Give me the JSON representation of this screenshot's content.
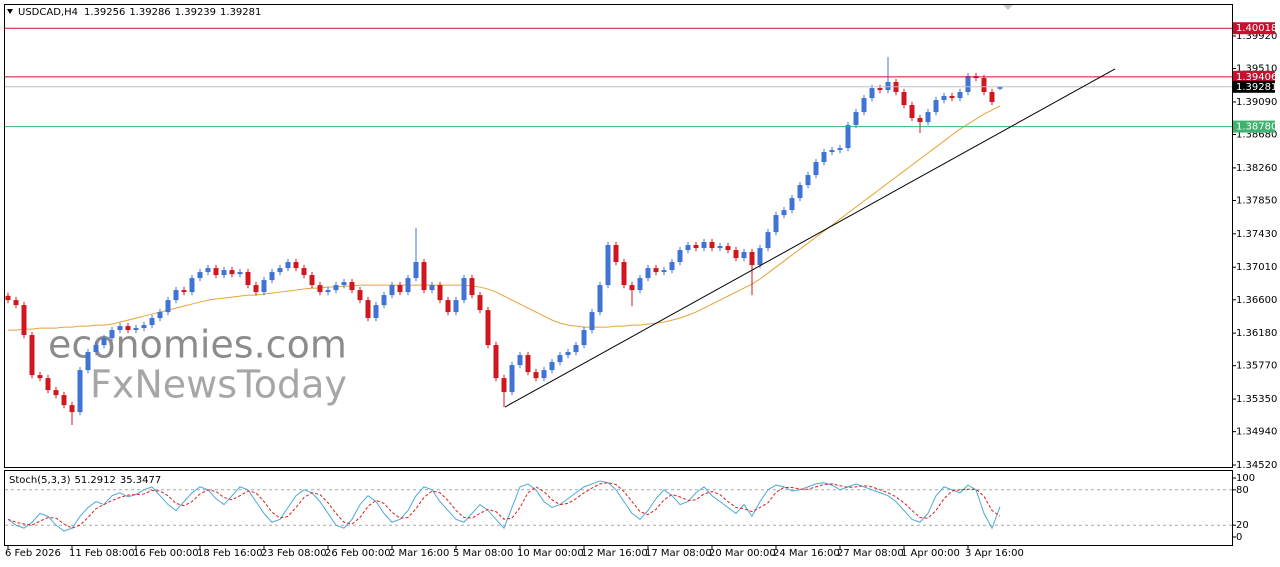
{
  "chart_data": [
    {
      "type": "candlestick",
      "title": "USDCAD,H4",
      "categories": [
        "6 Feb 2026",
        null,
        null,
        null,
        null,
        null,
        null,
        null,
        "11 Feb 08:00",
        null,
        null,
        null,
        null,
        null,
        null,
        null,
        "16 Feb 00:00",
        null,
        null,
        null,
        null,
        null,
        null,
        null,
        "18 Feb 16:00",
        null,
        null,
        null,
        null,
        null,
        null,
        null,
        "23 Feb 08:00",
        null,
        null,
        null,
        null,
        null,
        null,
        null,
        "26 Feb 00:00",
        null,
        null,
        null,
        null,
        null,
        null,
        null,
        "2 Mar 16:00",
        null,
        null,
        null,
        null,
        null,
        null,
        null,
        "5 Mar 08:00",
        null,
        null,
        null,
        null,
        null,
        null,
        null,
        "10 Mar 00:00",
        null,
        null,
        null,
        null,
        null,
        null,
        null,
        "12 Mar 16:00",
        null,
        null,
        null,
        null,
        null,
        null,
        null,
        "17 Mar 08:00",
        null,
        null,
        null,
        null,
        null,
        null,
        null,
        "20 Mar 00:00",
        null,
        null,
        null,
        null,
        null,
        null,
        null,
        "24 Mar 16:00",
        null,
        null,
        null,
        null,
        null,
        null,
        null,
        "27 Mar 08:00",
        null,
        null,
        null,
        null,
        null,
        null,
        null,
        "1 Apr 00:00",
        null,
        null,
        null,
        null,
        null,
        null,
        null,
        "3 Apr 16:00",
        null,
        null,
        null,
        null
      ],
      "open": [
        1.3665,
        1.36596,
        1.36533,
        1.36156,
        1.35652,
        1.35614,
        1.35463,
        1.354,
        1.35274,
        1.35186,
        1.35715,
        1.35942,
        1.3603,
        1.36118,
        1.36219,
        1.36269,
        1.36219,
        1.36244,
        1.36282,
        1.3637,
        1.36445,
        1.36596,
        1.36722,
        1.36697,
        1.36873,
        1.36949,
        1.36999,
        1.36911,
        1.36974,
        1.36923,
        1.36949,
        1.36785,
        1.36697,
        1.36848,
        1.36949,
        1.36999,
        1.37075,
        1.36999,
        1.36911,
        1.36785,
        1.36697,
        1.36722,
        1.36785,
        1.36823,
        1.36722,
        1.36596,
        1.3637,
        1.36533,
        1.36659,
        1.36785,
        1.36697,
        1.36873,
        1.37075,
        1.36722,
        1.36785,
        1.36596,
        1.36445,
        1.36596,
        1.36873,
        1.36659,
        1.3647,
        1.3603,
        1.35614,
        1.35438,
        1.35778,
        1.35904,
        1.3569,
        1.35614,
        1.35715,
        1.35816,
        1.35904,
        1.35942,
        1.3603,
        1.36219,
        1.36445,
        1.36785,
        1.37289,
        1.37075,
        1.36785,
        1.36722,
        1.36873,
        1.36999,
        1.36949,
        1.36974,
        1.37075,
        1.37226,
        1.37289,
        1.37251,
        1.37327,
        1.37251,
        1.37276,
        1.37226,
        1.37125,
        1.37201,
        1.37037,
        1.37251,
        1.37452,
        1.37666,
        1.37729,
        1.3788,
        1.38044,
        1.3817,
        1.38334,
        1.3846,
        1.38485,
        1.3851,
        1.388,
        1.38963,
        1.39139,
        1.39265,
        1.3924,
        1.39341,
        1.39215,
        1.39051,
        1.38888,
        1.38837,
        1.38963,
        1.39114,
        1.39165,
        1.39139,
        1.39215,
        1.39416,
        1.39391,
        1.39215,
        1.39256
      ],
      "high": [
        1.3669,
        1.36636,
        1.36573,
        1.36196,
        1.35692,
        1.35654,
        1.35503,
        1.3544,
        1.35314,
        1.35755,
        1.35982,
        1.3607,
        1.36158,
        1.36259,
        1.36309,
        1.36309,
        1.36284,
        1.36322,
        1.3641,
        1.36485,
        1.36636,
        1.36762,
        1.36762,
        1.36913,
        1.36989,
        1.37039,
        1.37039,
        1.37014,
        1.37014,
        1.36989,
        1.36989,
        1.36825,
        1.36888,
        1.36989,
        1.37039,
        1.37115,
        1.37115,
        1.37039,
        1.36951,
        1.36825,
        1.36762,
        1.36825,
        1.36863,
        1.36863,
        1.36762,
        1.36636,
        1.36573,
        1.36699,
        1.36825,
        1.36825,
        1.36913,
        1.37503,
        1.37115,
        1.36825,
        1.36825,
        1.36636,
        1.36636,
        1.36913,
        1.36913,
        1.36699,
        1.3651,
        1.3607,
        1.35654,
        1.35818,
        1.35944,
        1.35944,
        1.3573,
        1.35755,
        1.35856,
        1.35944,
        1.35982,
        1.3607,
        1.36259,
        1.36485,
        1.36825,
        1.37329,
        1.37329,
        1.37115,
        1.36825,
        1.36913,
        1.37039,
        1.37039,
        1.37014,
        1.37115,
        1.37266,
        1.37329,
        1.37329,
        1.37367,
        1.37367,
        1.37316,
        1.37316,
        1.37266,
        1.37241,
        1.37241,
        1.37291,
        1.37492,
        1.37706,
        1.37769,
        1.3792,
        1.38084,
        1.3821,
        1.38374,
        1.385,
        1.38525,
        1.3855,
        1.3884,
        1.39003,
        1.39179,
        1.39305,
        1.39305,
        1.39656,
        1.39381,
        1.39255,
        1.39091,
        1.38928,
        1.39003,
        1.39154,
        1.39205,
        1.39205,
        1.39255,
        1.39456,
        1.39456,
        1.39431,
        1.39255,
        1.39286
      ],
      "low": [
        1.36556,
        1.36493,
        1.36116,
        1.35612,
        1.35574,
        1.35423,
        1.3536,
        1.35234,
        1.35023,
        1.35146,
        1.35675,
        1.35902,
        1.3599,
        1.36078,
        1.36179,
        1.36179,
        1.36179,
        1.36204,
        1.36242,
        1.3633,
        1.36405,
        1.36556,
        1.36657,
        1.36657,
        1.36833,
        1.36909,
        1.36871,
        1.36871,
        1.36883,
        1.36883,
        1.36745,
        1.36657,
        1.36657,
        1.36808,
        1.36909,
        1.36959,
        1.36959,
        1.36871,
        1.36745,
        1.36657,
        1.36657,
        1.36682,
        1.36745,
        1.36682,
        1.36556,
        1.3633,
        1.3633,
        1.36493,
        1.36619,
        1.36657,
        1.36657,
        1.36833,
        1.36682,
        1.36682,
        1.36556,
        1.36405,
        1.36405,
        1.36556,
        1.36619,
        1.3643,
        1.3599,
        1.35574,
        1.3525,
        1.35398,
        1.35738,
        1.3565,
        1.35574,
        1.35574,
        1.35675,
        1.35776,
        1.35864,
        1.35902,
        1.3599,
        1.36179,
        1.36405,
        1.36745,
        1.37035,
        1.36745,
        1.3652,
        1.36682,
        1.36833,
        1.36909,
        1.36909,
        1.36934,
        1.37035,
        1.37186,
        1.37211,
        1.37211,
        1.37211,
        1.37211,
        1.37186,
        1.37085,
        1.37085,
        1.36659,
        1.36997,
        1.37211,
        1.37412,
        1.37626,
        1.37689,
        1.3784,
        1.38004,
        1.3813,
        1.38294,
        1.3842,
        1.38445,
        1.3847,
        1.3876,
        1.38923,
        1.39099,
        1.392,
        1.392,
        1.39175,
        1.39011,
        1.38848,
        1.387,
        1.38797,
        1.38923,
        1.39074,
        1.39099,
        1.39099,
        1.39175,
        1.39351,
        1.39175,
        1.39049,
        1.39239
      ],
      "close": [
        1.36596,
        1.36533,
        1.36156,
        1.35652,
        1.35614,
        1.35463,
        1.354,
        1.35274,
        1.35186,
        1.35715,
        1.35942,
        1.3603,
        1.36118,
        1.36219,
        1.36269,
        1.36219,
        1.36244,
        1.36282,
        1.3637,
        1.36445,
        1.36596,
        1.36722,
        1.36697,
        1.36873,
        1.36949,
        1.36999,
        1.36911,
        1.36974,
        1.36923,
        1.36949,
        1.36785,
        1.36697,
        1.36848,
        1.36949,
        1.36999,
        1.37075,
        1.36999,
        1.36911,
        1.36785,
        1.36697,
        1.36722,
        1.36785,
        1.36823,
        1.36722,
        1.36596,
        1.3637,
        1.36533,
        1.36659,
        1.36785,
        1.36697,
        1.36873,
        1.37075,
        1.36722,
        1.36785,
        1.36596,
        1.36445,
        1.36596,
        1.36873,
        1.36659,
        1.3647,
        1.3603,
        1.35614,
        1.35438,
        1.35778,
        1.35904,
        1.3569,
        1.35614,
        1.35715,
        1.35816,
        1.35904,
        1.35942,
        1.3603,
        1.36219,
        1.36445,
        1.36785,
        1.37289,
        1.37075,
        1.36785,
        1.36722,
        1.36873,
        1.36999,
        1.36949,
        1.36974,
        1.37075,
        1.37226,
        1.37289,
        1.37251,
        1.37327,
        1.37251,
        1.37276,
        1.37226,
        1.37125,
        1.37201,
        1.37037,
        1.37251,
        1.37452,
        1.37666,
        1.37729,
        1.3788,
        1.38044,
        1.3817,
        1.38334,
        1.3846,
        1.38485,
        1.3851,
        1.388,
        1.38963,
        1.39139,
        1.39265,
        1.3924,
        1.39341,
        1.39215,
        1.39051,
        1.38888,
        1.38837,
        1.38963,
        1.39114,
        1.39165,
        1.39139,
        1.39215,
        1.39416,
        1.39391,
        1.39215,
        1.39089,
        1.39281
      ],
      "up_color": "#3f74d6",
      "down_color": "#d0161e",
      "ma": {
        "color": "#e3a53b",
        "values": [
          1.36218,
          1.36218,
          1.36231,
          1.36231,
          1.36243,
          1.36243,
          1.36243,
          1.36256,
          1.36256,
          1.36269,
          1.36269,
          1.36281,
          1.36281,
          1.36294,
          1.36319,
          1.36344,
          1.36369,
          1.36395,
          1.3642,
          1.36445,
          1.3647,
          1.36495,
          1.3652,
          1.36546,
          1.36571,
          1.36596,
          1.36609,
          1.36621,
          1.36634,
          1.36646,
          1.36659,
          1.36659,
          1.36672,
          1.36684,
          1.36697,
          1.36709,
          1.36722,
          1.36735,
          1.36747,
          1.36747,
          1.3676,
          1.3676,
          1.36772,
          1.36772,
          1.36785,
          1.36785,
          1.36785,
          1.36785,
          1.36785,
          1.36785,
          1.36785,
          1.36785,
          1.36785,
          1.36785,
          1.36785,
          1.36785,
          1.36785,
          1.36785,
          1.36772,
          1.3676,
          1.36735,
          1.36697,
          1.36646,
          1.36596,
          1.36546,
          1.36495,
          1.36445,
          1.36395,
          1.36344,
          1.36306,
          1.36281,
          1.36269,
          1.36256,
          1.36256,
          1.36256,
          1.36256,
          1.36269,
          1.36269,
          1.36281,
          1.36281,
          1.36294,
          1.36306,
          1.36319,
          1.36344,
          1.36369,
          1.36407,
          1.36445,
          1.36495,
          1.36546,
          1.36596,
          1.36646,
          1.36697,
          1.36747,
          1.36798,
          1.36861,
          1.36936,
          1.37012,
          1.37087,
          1.37163,
          1.37238,
          1.37314,
          1.37389,
          1.37465,
          1.3754,
          1.37616,
          1.37692,
          1.37767,
          1.37843,
          1.37918,
          1.37994,
          1.38069,
          1.38145,
          1.3822,
          1.38296,
          1.38371,
          1.38447,
          1.38522,
          1.38598,
          1.38674,
          1.38749,
          1.38812,
          1.38875,
          1.38938,
          1.38988,
          1.39039
        ]
      },
      "trendline": {
        "start": 1.3525,
        "end": 1.39505,
        "color": "#000000"
      },
      "levels": [
        {
          "price": 1.40018,
          "color": "#c8102e"
        },
        {
          "price": 1.39406,
          "color": "#c8102e"
        },
        {
          "price": {
            "value": 1.3878,
            "label": "1.38780"
          },
          "color": "#3cb371"
        }
      ],
      "last_price_line": {
        "color": "#c0c0c0",
        "box": "#000000"
      },
      "ylim": [
        1.34495,
        1.40323
      ],
      "yticks": [
        {
          "value": 1.3992,
          "label": "1.39920"
        },
        {
          "value": 1.3951,
          "label": "1.39510"
        },
        {
          "value": 1.3909,
          "label": "1.39090"
        },
        {
          "value": 1.3868,
          "label": "1.38680"
        },
        {
          "value": 1.3826,
          "label": "1.38260"
        },
        {
          "value": 1.3785,
          "label": "1.37850"
        },
        {
          "value": 1.3743,
          "label": "1.37430"
        },
        {
          "value": 1.3701,
          "label": "1.37010"
        },
        {
          "value": 1.366,
          "label": "1.36600"
        },
        {
          "value": 1.3618,
          "label": "1.36180"
        },
        {
          "value": 1.3577,
          "label": "1.35770"
        },
        {
          "value": 1.3535,
          "label": "1.35350"
        },
        {
          "value": 1.3494,
          "label": "1.34940"
        },
        {
          "value": 1.3452,
          "label": "1.34520"
        }
      ],
      "watermark": [
        "economies.com",
        "FxNewsToday"
      ]
    },
    {
      "type": "line",
      "title": "Stoch(5,3,3)",
      "series": [
        {
          "color": "#4ea9dc",
          "dash": false,
          "values": [
            30,
            20,
            15,
            25,
            40,
            35,
            20,
            10,
            15,
            35,
            50,
            60,
            55,
            70,
            75,
            68,
            72,
            80,
            85,
            70,
            55,
            45,
            60,
            75,
            85,
            80,
            65,
            55,
            70,
            85,
            80,
            60,
            40,
            25,
            30,
            50,
            70,
            80,
            75,
            60,
            40,
            20,
            15,
            30,
            55,
            70,
            60,
            40,
            25,
            30,
            45,
            70,
            85,
            80,
            60,
            45,
            30,
            25,
            40,
            55,
            45,
            30,
            15,
            50,
            85,
            90,
            80,
            60,
            50,
            55,
            65,
            75,
            85,
            90,
            95,
            92,
            80,
            60,
            40,
            30,
            45,
            65,
            80,
            70,
            55,
            60,
            75,
            85,
            70,
            60,
            50,
            40,
            55,
            35,
            60,
            80,
            88,
            85,
            78,
            80,
            85,
            90,
            92,
            88,
            80,
            85,
            90,
            85,
            80,
            75,
            70,
            60,
            45,
            30,
            25,
            40,
            70,
            85,
            80,
            75,
            88,
            80,
            40,
            15,
            51.2912
          ]
        },
        {
          "color": "#d62020",
          "dash": true,
          "values": [
            30,
            25,
            22,
            20,
            27,
            33,
            32,
            22,
            15,
            20,
            33,
            48,
            55,
            62,
            67,
            71,
            72,
            73,
            79,
            78,
            70,
            57,
            53,
            60,
            73,
            80,
            77,
            67,
            63,
            70,
            78,
            75,
            60,
            42,
            32,
            35,
            50,
            67,
            75,
            72,
            58,
            40,
            25,
            22,
            33,
            52,
            62,
            57,
            42,
            32,
            33,
            48,
            67,
            78,
            75,
            62,
            45,
            33,
            32,
            40,
            47,
            43,
            30,
            32,
            50,
            75,
            85,
            77,
            63,
            55,
            57,
            65,
            75,
            83,
            90,
            92,
            89,
            77,
            60,
            43,
            38,
            47,
            63,
            72,
            68,
            62,
            63,
            73,
            77,
            72,
            60,
            50,
            48,
            43,
            50,
            58,
            76,
            84,
            84,
            81,
            81,
            85,
            89,
            90,
            87,
            84,
            85,
            87,
            85,
            80,
            75,
            68,
            58,
            45,
            33,
            32,
            45,
            65,
            78,
            80,
            81,
            81,
            69,
            45,
            35.3477
          ]
        }
      ],
      "levels": [
        20,
        80
      ],
      "level_color": "#a8a8a8",
      "ylim": [
        -13.6,
        111.9
      ],
      "yticks": [
        0,
        20,
        80,
        100
      ]
    }
  ]
}
